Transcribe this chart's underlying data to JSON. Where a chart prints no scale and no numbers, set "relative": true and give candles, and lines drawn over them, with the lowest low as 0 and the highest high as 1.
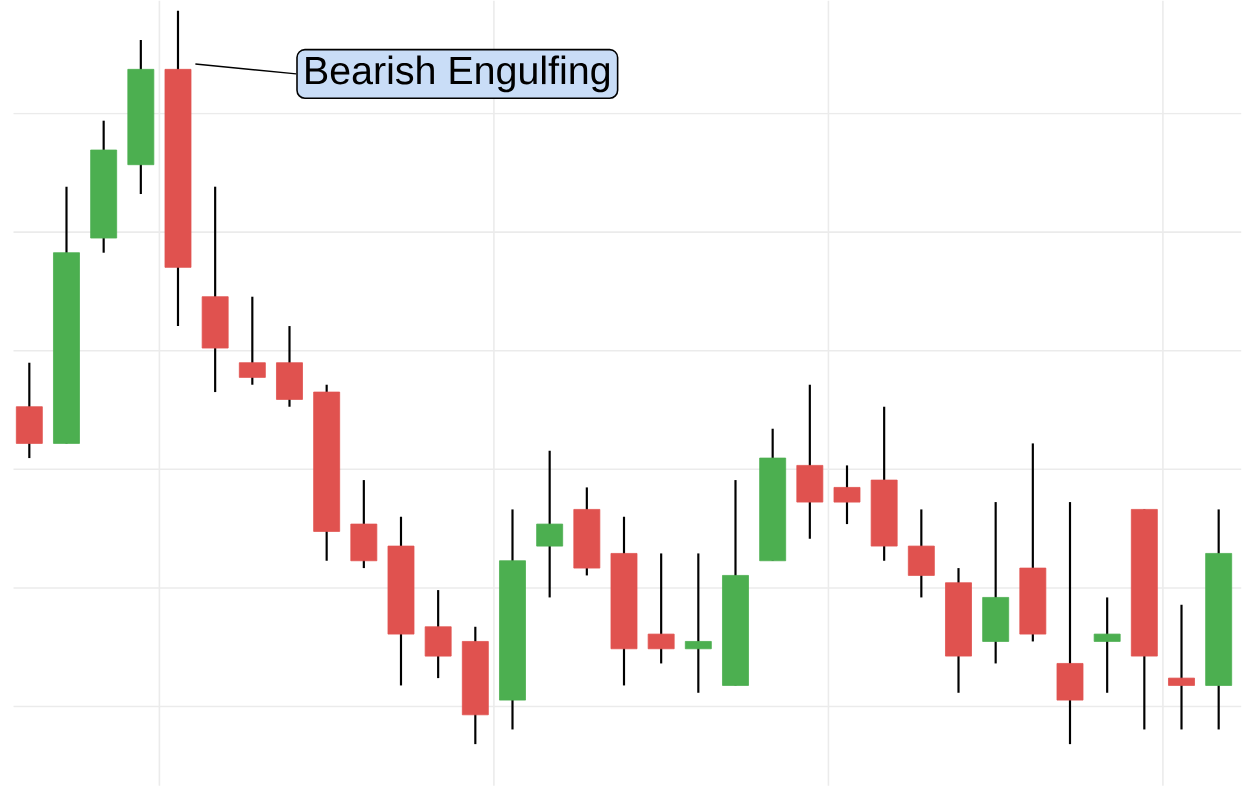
{
  "chart_data": {
    "type": "candlestick",
    "relative": true,
    "grid": true,
    "categories": [
      null,
      null,
      null,
      null,
      null,
      null,
      null,
      null,
      null,
      null,
      null,
      null,
      null,
      null,
      null,
      null,
      null,
      null,
      null,
      null,
      null,
      null,
      null,
      null,
      null,
      null,
      null,
      null,
      null,
      null,
      null,
      null,
      null
    ],
    "ohlc": [
      [
        0.46,
        0.52,
        0.39,
        0.41
      ],
      [
        0.41,
        0.76,
        0.41,
        0.67
      ],
      [
        0.69,
        0.85,
        0.67,
        0.81
      ],
      [
        0.79,
        0.96,
        0.75,
        0.92
      ],
      [
        0.92,
        1,
        0.57,
        0.65
      ],
      [
        0.61,
        0.76,
        0.48,
        0.54
      ],
      [
        0.52,
        0.61,
        0.49,
        0.5
      ],
      [
        0.52,
        0.57,
        0.46,
        0.47
      ],
      [
        0.48,
        0.49,
        0.25,
        0.29
      ],
      [
        0.3,
        0.36,
        0.24,
        0.25
      ],
      [
        0.27,
        0.31,
        0.08,
        0.15
      ],
      [
        0.16,
        0.21,
        0.09,
        0.12
      ],
      [
        0.14,
        0.16,
        0,
        0.04
      ],
      [
        0.06,
        0.32,
        0.02,
        0.25
      ],
      [
        0.27,
        0.4,
        0.2,
        0.3
      ],
      [
        0.32,
        0.35,
        0.23,
        0.24
      ],
      [
        0.26,
        0.31,
        0.08,
        0.13
      ],
      [
        0.15,
        0.26,
        0.11,
        0.13
      ],
      [
        0.13,
        0.26,
        0.07,
        0.14
      ],
      [
        0.08,
        0.36,
        0.08,
        0.23
      ],
      [
        0.25,
        0.43,
        0.25,
        0.39
      ],
      [
        0.38,
        0.49,
        0.28,
        0.33
      ],
      [
        0.35,
        0.38,
        0.3,
        0.33
      ],
      [
        0.36,
        0.46,
        0.25,
        0.27
      ],
      [
        0.27,
        0.32,
        0.2,
        0.23
      ],
      [
        0.22,
        0.24,
        0.07,
        0.12
      ],
      [
        0.14,
        0.33,
        0.11,
        0.2
      ],
      [
        0.24,
        0.41,
        0.14,
        0.15
      ],
      [
        0.11,
        0.33,
        0,
        0.06
      ],
      [
        0.14,
        0.2,
        0.07,
        0.15
      ],
      [
        0.32,
        0.32,
        0.02,
        0.12
      ],
      [
        0.09,
        0.19,
        0.02,
        0.08
      ],
      [
        0.08,
        0.32,
        0.02,
        0.26
      ]
    ],
    "colors": [
      "#e0524f",
      "#4caf50",
      "#4caf50",
      "#4caf50",
      "#e0524f",
      "#e0524f",
      "#e0524f",
      "#e0524f",
      "#e0524f",
      "#e0524f",
      "#e0524f",
      "#e0524f",
      "#e0524f",
      "#4caf50",
      "#4caf50",
      "#e0524f",
      "#e0524f",
      "#e0524f",
      "#4caf50",
      "#4caf50",
      "#4caf50",
      "#e0524f",
      "#e0524f",
      "#e0524f",
      "#e0524f",
      "#e0524f",
      "#4caf50",
      "#e0524f",
      "#e0524f",
      "#4caf50",
      "#e0524f",
      "#e0524f",
      "#4caf50"
    ],
    "annotations": [
      "Bearish Engulfing"
    ]
  }
}
